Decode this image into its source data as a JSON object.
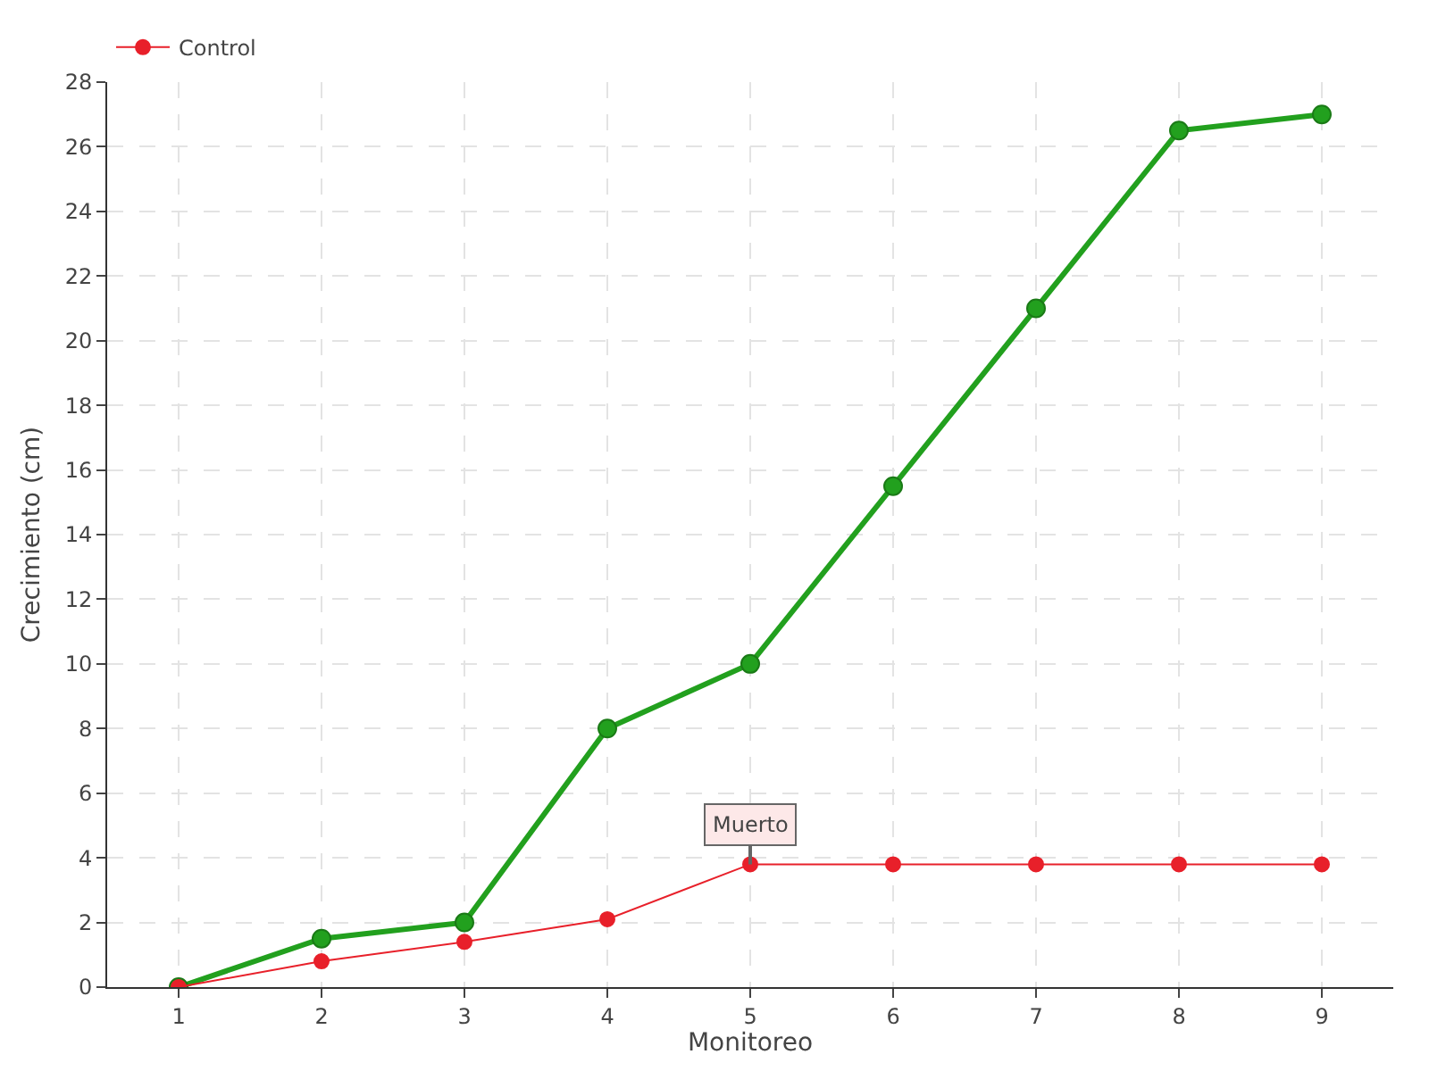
{
  "chart_data": {
    "type": "line",
    "xlabel": "Monitoreo",
    "ylabel": "Crecimiento (cm)",
    "x": [
      1,
      2,
      3,
      4,
      5,
      6,
      7,
      8,
      9
    ],
    "series": [
      {
        "color": "#22a01e",
        "values": [
          0,
          1.5,
          2,
          8,
          10,
          15.5,
          21,
          26.5,
          27
        ]
      },
      {
        "name": "Control",
        "color": "#e8202a",
        "values": [
          0,
          0.8,
          1.4,
          2.1,
          3.8,
          3.8,
          3.8,
          3.8,
          3.8
        ]
      }
    ],
    "xlim": [
      0.5,
      9.5
    ],
    "xticks": [
      1,
      2,
      3,
      4,
      5,
      6,
      7,
      8,
      9
    ],
    "ylim": [
      0,
      28
    ],
    "yticks": [
      0,
      2,
      4,
      6,
      8,
      10,
      12,
      14,
      16,
      18,
      20,
      22,
      24,
      26,
      28
    ],
    "annotations": [
      {
        "text": "Muerto",
        "x": 5,
        "y": 3.8
      }
    ],
    "grid": true,
    "legend": "top left",
    "marker": "circle",
    "line_style": "solid"
  }
}
